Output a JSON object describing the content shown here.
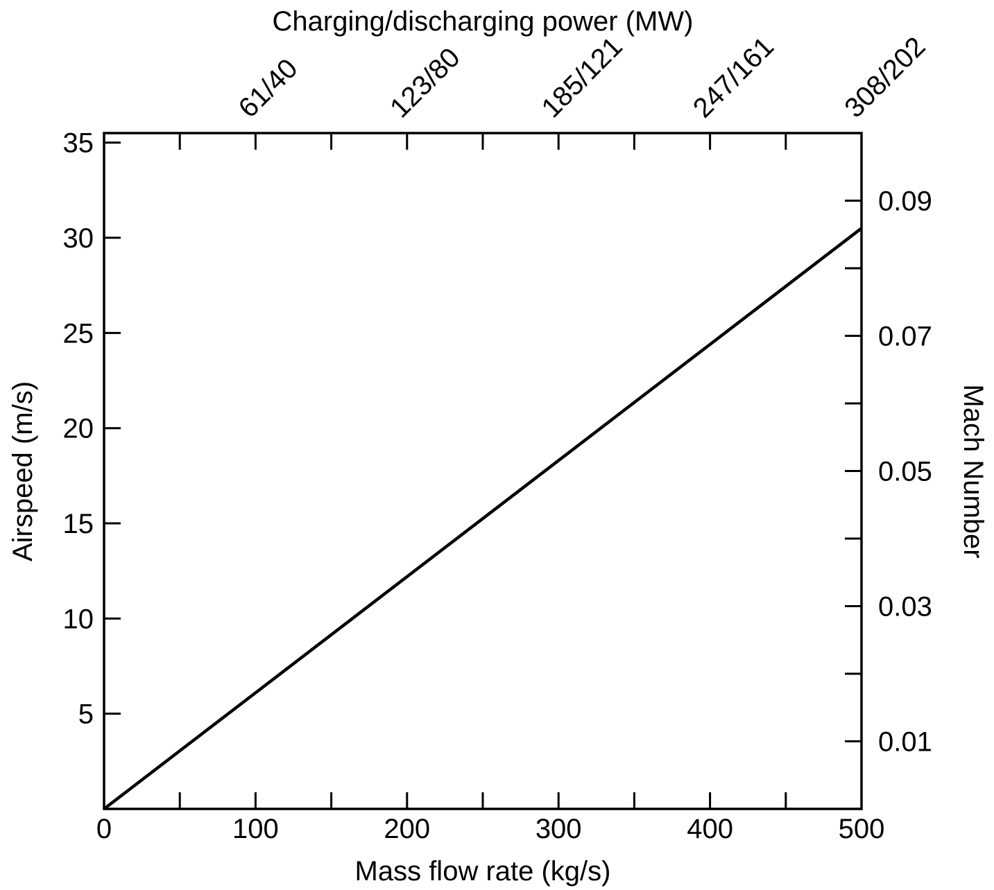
{
  "chart_data": {
    "type": "line",
    "xlabel": "Mass flow rate (kg/s)",
    "ylabel": "Airspeed (m/s)",
    "x2label": "Charging/discharging power (MW)",
    "y2label": "Mach Number",
    "xlim": [
      0,
      500
    ],
    "ylim": [
      0,
      35.5
    ],
    "y2lim": [
      0,
      0.1
    ],
    "x_ticks": [
      0,
      50,
      100,
      150,
      200,
      250,
      300,
      350,
      400,
      450,
      500
    ],
    "x_tick_labels": [
      {
        "value": 0,
        "label": "0"
      },
      {
        "value": 100,
        "label": "100"
      },
      {
        "value": 200,
        "label": "200"
      },
      {
        "value": 300,
        "label": "300"
      },
      {
        "value": 400,
        "label": "400"
      },
      {
        "value": 500,
        "label": "500"
      }
    ],
    "y_ticks": [
      5,
      10,
      15,
      20,
      25,
      30,
      35
    ],
    "y_tick_labels": [
      "5",
      "10",
      "15",
      "20",
      "25",
      "30",
      "35"
    ],
    "y2_ticks": [
      0.01,
      0.02,
      0.03,
      0.04,
      0.05,
      0.06,
      0.07,
      0.08,
      0.09
    ],
    "y2_tick_labels": [
      {
        "value": 0.01,
        "label": "0.01"
      },
      {
        "value": 0.03,
        "label": "0.03"
      },
      {
        "value": 0.05,
        "label": "0.05"
      },
      {
        "value": 0.07,
        "label": "0.07"
      },
      {
        "value": 0.09,
        "label": "0.09"
      }
    ],
    "x2_ticks": [
      50,
      100,
      150,
      200,
      250,
      300,
      350,
      400,
      450,
      500
    ],
    "x2_tick_labels": [
      {
        "value": 100,
        "label": "61/40"
      },
      {
        "value": 200,
        "label": "123/80"
      },
      {
        "value": 300,
        "label": "185/121"
      },
      {
        "value": 400,
        "label": "247/161"
      },
      {
        "value": 500,
        "label": "308/202"
      }
    ],
    "series": [
      {
        "x": [
          0,
          500
        ],
        "y": [
          0,
          30.5
        ]
      }
    ],
    "grid": false,
    "legend": "none"
  }
}
